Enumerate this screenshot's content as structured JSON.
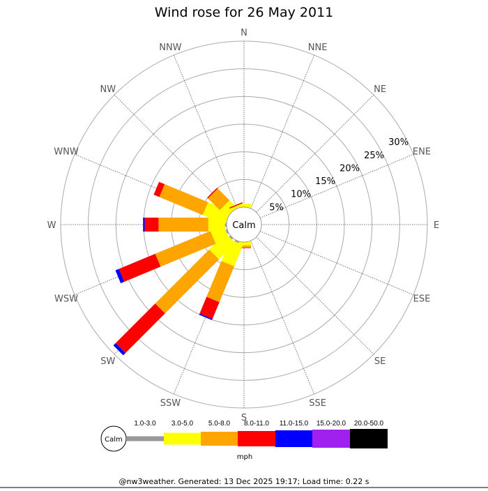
{
  "chart_data": {
    "type": "wind-rose",
    "title": "Wind rose for 26 May 2011",
    "directions": [
      "N",
      "NNE",
      "NE",
      "ENE",
      "E",
      "ESE",
      "SE",
      "SSE",
      "S",
      "SSW",
      "SW",
      "WSW",
      "W",
      "WNW",
      "NW",
      "NNW"
    ],
    "radial_ticks": [
      "5%",
      "10%",
      "15%",
      "20%",
      "25%",
      "30%"
    ],
    "radial_range": [
      0,
      30
    ],
    "calm_label": "Calm",
    "unit": "mph",
    "bands": [
      {
        "label": "1.0-3.0",
        "color": "#999999"
      },
      {
        "label": "3.0-5.0",
        "color": "#ffff00"
      },
      {
        "label": "5.0-8.0",
        "color": "#ffa500"
      },
      {
        "label": "8.0-11.0",
        "color": "#ff0000"
      },
      {
        "label": "11.0-15.0",
        "color": "#0000ff"
      },
      {
        "label": "15.0-20.0",
        "color": "#a020f0"
      },
      {
        "label": "20.0-50.0",
        "color": "#000000"
      }
    ],
    "series": [
      {
        "direction": "N",
        "values": [
          0,
          0.6,
          0,
          0,
          0,
          0,
          0
        ]
      },
      {
        "direction": "S",
        "values": [
          0,
          0.6,
          0.4,
          0.1,
          0,
          0,
          0
        ]
      },
      {
        "direction": "SSW",
        "values": [
          0.3,
          4.2,
          7.0,
          3.3,
          0.2,
          0,
          0
        ]
      },
      {
        "direction": "SW",
        "values": [
          0.3,
          4.2,
          13.8,
          10.1,
          0.6,
          0,
          0
        ]
      },
      {
        "direction": "WSW",
        "values": [
          0.3,
          2.6,
          10.8,
          7.1,
          0.7,
          0,
          0
        ]
      },
      {
        "direction": "W",
        "values": [
          0.3,
          3.0,
          9.0,
          2.5,
          0.3,
          0,
          0
        ]
      },
      {
        "direction": "WNW",
        "values": [
          0,
          4.4,
          8.5,
          1.1,
          0,
          0,
          0
        ]
      },
      {
        "direction": "NW",
        "values": [
          0,
          1.8,
          3.0,
          0.2,
          0,
          0,
          0
        ]
      },
      {
        "direction": "NNW",
        "values": [
          0,
          0.5,
          0,
          0.2,
          0,
          0,
          0
        ]
      }
    ]
  },
  "footer": "@nw3weather. Generated: 13 Dec 2025 19:17; Load time: 0.22 s"
}
